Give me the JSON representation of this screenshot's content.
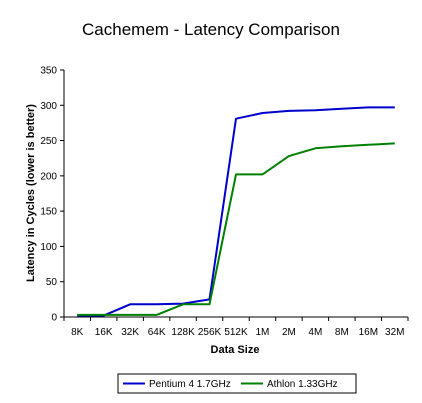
{
  "chart_data": {
    "type": "line",
    "title": "Cachemem - Latency Comparison",
    "xlabel": "Data Size",
    "ylabel": "Latency in Cycles (lower is better)",
    "categories": [
      "8K",
      "16K",
      "32K",
      "64K",
      "128K",
      "256K",
      "512K",
      "1M",
      "2M",
      "4M",
      "8M",
      "16M",
      "32M"
    ],
    "ylim": [
      0,
      350
    ],
    "yticks": [
      0,
      50,
      100,
      150,
      200,
      250,
      300,
      350
    ],
    "grid": false,
    "legend_position": "bottom",
    "series": [
      {
        "name": "Pentium 4 1.7GHz",
        "color": "#0000cc",
        "values": [
          2,
          2,
          18,
          18,
          19,
          25,
          281,
          289,
          292,
          293,
          295,
          297,
          297
        ]
      },
      {
        "name": "Athlon 1.33GHz",
        "color": "#008000",
        "values": [
          3,
          3,
          3,
          3,
          18,
          18,
          202,
          202,
          228,
          239,
          242,
          244,
          246
        ]
      }
    ]
  }
}
